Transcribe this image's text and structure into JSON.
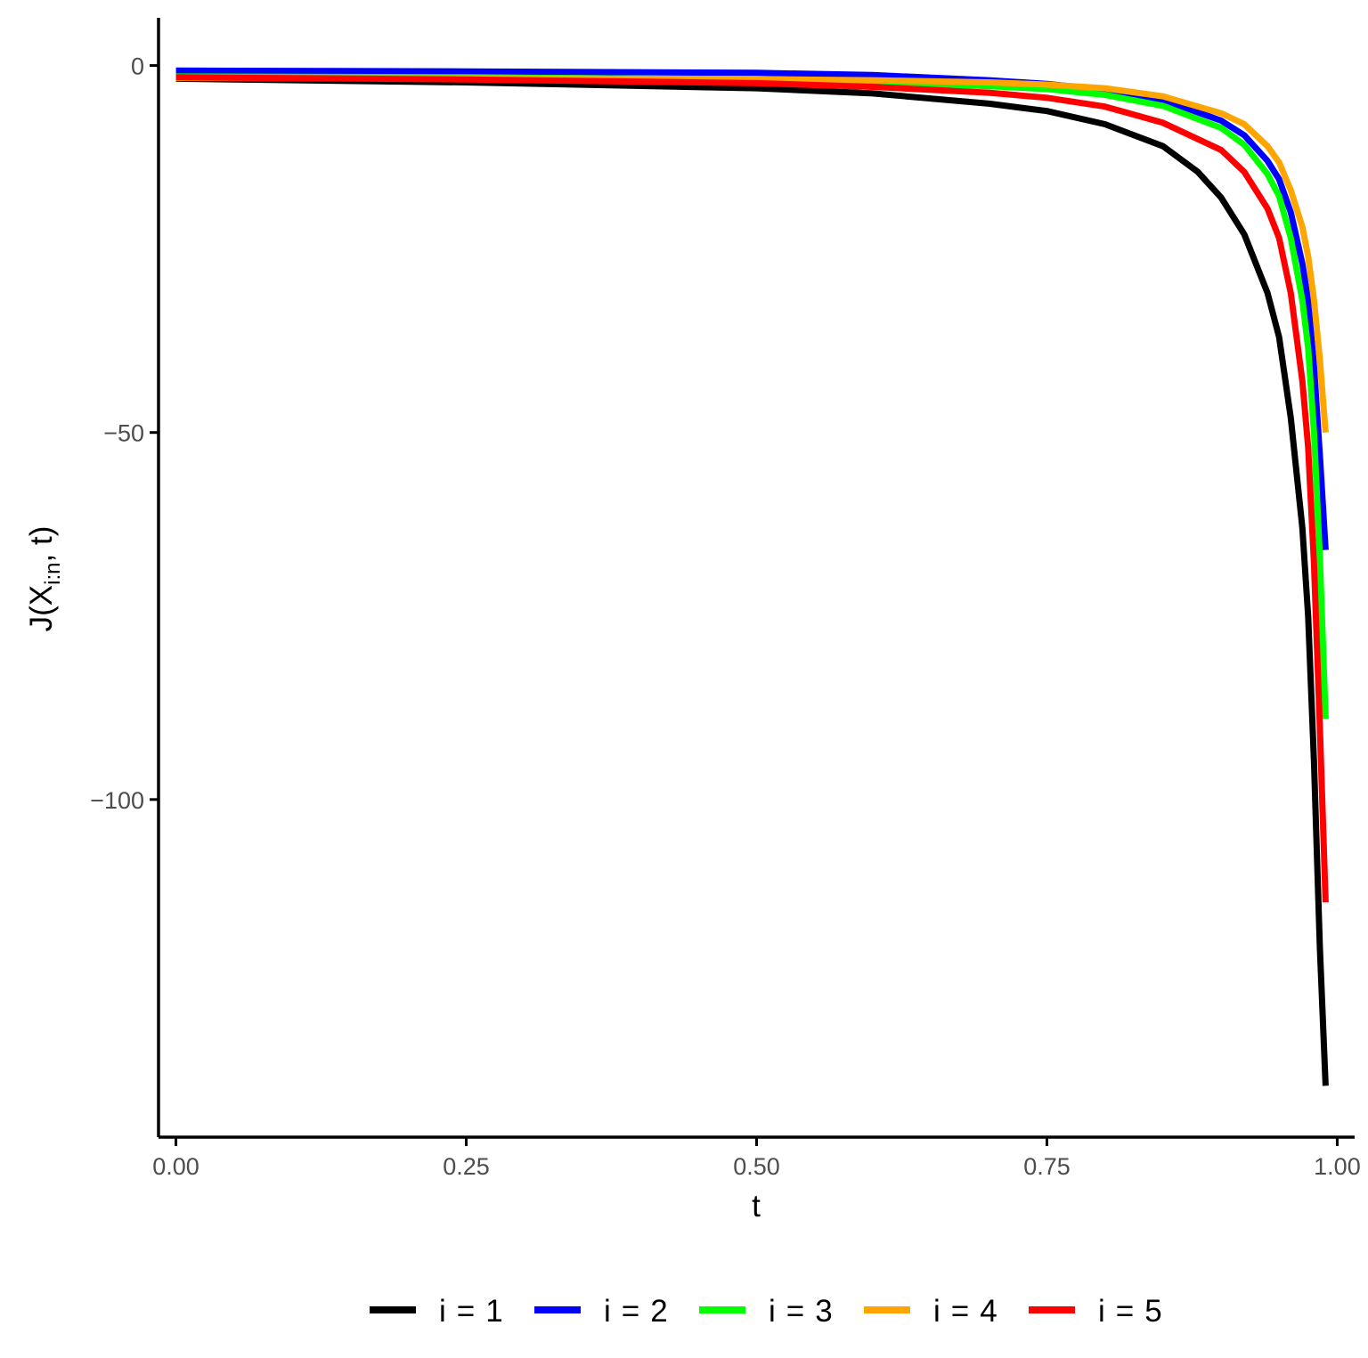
{
  "chart_data": {
    "type": "line",
    "title": "",
    "xlabel": "t",
    "ylabel": "J(X_{i:n}, t)",
    "ylabel_parts": {
      "pre": "J(X",
      "sub": "i:n",
      "post": ", t)"
    },
    "xlim": [
      -0.015,
      1.015
    ],
    "ylim": [
      -146,
      6.5
    ],
    "x_ticks": [
      {
        "value": 0,
        "label": "0.00"
      },
      {
        "value": 0.25,
        "label": "0.25"
      },
      {
        "value": 0.5,
        "label": "0.50"
      },
      {
        "value": 0.75,
        "label": "0.75"
      },
      {
        "value": 1,
        "label": "1.00"
      }
    ],
    "y_ticks": [
      {
        "value": 0,
        "label": "0"
      },
      {
        "value": -50,
        "label": "−50"
      },
      {
        "value": -100,
        "label": "−100"
      }
    ],
    "grid": false,
    "legend_position": "bottom",
    "series": [
      {
        "name": "i = 1",
        "name_parts": {
          "lhs": "i",
          "op": "=",
          "rhs": "1"
        },
        "color": "#000000",
        "points": [
          [
            0,
            -1.8
          ],
          [
            0.25,
            -2.3
          ],
          [
            0.5,
            -3.1
          ],
          [
            0.6,
            -3.8
          ],
          [
            0.7,
            -5.2
          ],
          [
            0.75,
            -6.2
          ],
          [
            0.8,
            -8.0
          ],
          [
            0.85,
            -11.0
          ],
          [
            0.88,
            -14.5
          ],
          [
            0.9,
            -18.0
          ],
          [
            0.92,
            -23.0
          ],
          [
            0.94,
            -31.0
          ],
          [
            0.95,
            -37.0
          ],
          [
            0.96,
            -48.0
          ],
          [
            0.97,
            -63.0
          ],
          [
            0.975,
            -75.0
          ],
          [
            0.98,
            -95.0
          ],
          [
            0.985,
            -120.0
          ],
          [
            0.99,
            -139.0
          ]
        ]
      },
      {
        "name": "i = 2",
        "name_parts": {
          "lhs": "i",
          "op": "=",
          "rhs": "2"
        },
        "color": "#0000ff",
        "points": [
          [
            0,
            -0.7
          ],
          [
            0.25,
            -0.8
          ],
          [
            0.5,
            -1.0
          ],
          [
            0.6,
            -1.3
          ],
          [
            0.7,
            -2.0
          ],
          [
            0.75,
            -2.5
          ],
          [
            0.8,
            -3.3
          ],
          [
            0.85,
            -4.7
          ],
          [
            0.9,
            -7.5
          ],
          [
            0.92,
            -9.5
          ],
          [
            0.94,
            -13.0
          ],
          [
            0.95,
            -15.5
          ],
          [
            0.96,
            -20.0
          ],
          [
            0.97,
            -27.0
          ],
          [
            0.975,
            -32.0
          ],
          [
            0.98,
            -41.0
          ],
          [
            0.985,
            -53.0
          ],
          [
            0.99,
            -66.0
          ]
        ]
      },
      {
        "name": "i = 3",
        "name_parts": {
          "lhs": "i",
          "op": "=",
          "rhs": "3"
        },
        "color": "#00ff00",
        "points": [
          [
            0,
            -1.5
          ],
          [
            0.25,
            -1.6
          ],
          [
            0.5,
            -1.9
          ],
          [
            0.6,
            -2.2
          ],
          [
            0.7,
            -2.8
          ],
          [
            0.75,
            -3.2
          ],
          [
            0.8,
            -4.0
          ],
          [
            0.85,
            -5.5
          ],
          [
            0.9,
            -8.5
          ],
          [
            0.92,
            -10.8
          ],
          [
            0.94,
            -14.8
          ],
          [
            0.95,
            -17.8
          ],
          [
            0.96,
            -23.5
          ],
          [
            0.97,
            -32.0
          ],
          [
            0.975,
            -38.5
          ],
          [
            0.98,
            -50.0
          ],
          [
            0.985,
            -67.0
          ],
          [
            0.99,
            -89.0
          ]
        ]
      },
      {
        "name": "i = 4",
        "name_parts": {
          "lhs": "i",
          "op": "=",
          "rhs": "4"
        },
        "color": "#ffa500",
        "points": [
          [
            0,
            -1.7
          ],
          [
            0.25,
            -1.75
          ],
          [
            0.5,
            -1.85
          ],
          [
            0.6,
            -2.0
          ],
          [
            0.7,
            -2.3
          ],
          [
            0.75,
            -2.6
          ],
          [
            0.8,
            -3.1
          ],
          [
            0.85,
            -4.2
          ],
          [
            0.9,
            -6.5
          ],
          [
            0.92,
            -8.0
          ],
          [
            0.94,
            -11.0
          ],
          [
            0.95,
            -13.2
          ],
          [
            0.96,
            -17.0
          ],
          [
            0.97,
            -22.0
          ],
          [
            0.975,
            -26.0
          ],
          [
            0.98,
            -32.0
          ],
          [
            0.985,
            -40.0
          ],
          [
            0.99,
            -50.0
          ]
        ]
      },
      {
        "name": "i = 5",
        "name_parts": {
          "lhs": "i",
          "op": "=",
          "rhs": "5"
        },
        "color": "#ff0000",
        "points": [
          [
            0,
            -1.6
          ],
          [
            0.25,
            -1.9
          ],
          [
            0.5,
            -2.4
          ],
          [
            0.6,
            -2.9
          ],
          [
            0.7,
            -3.7
          ],
          [
            0.75,
            -4.4
          ],
          [
            0.8,
            -5.6
          ],
          [
            0.85,
            -7.8
          ],
          [
            0.9,
            -11.5
          ],
          [
            0.92,
            -14.5
          ],
          [
            0.94,
            -19.5
          ],
          [
            0.95,
            -23.5
          ],
          [
            0.96,
            -31.0
          ],
          [
            0.97,
            -43.0
          ],
          [
            0.975,
            -52.0
          ],
          [
            0.98,
            -68.0
          ],
          [
            0.985,
            -90.0
          ],
          [
            0.99,
            -114.0
          ]
        ]
      }
    ]
  }
}
